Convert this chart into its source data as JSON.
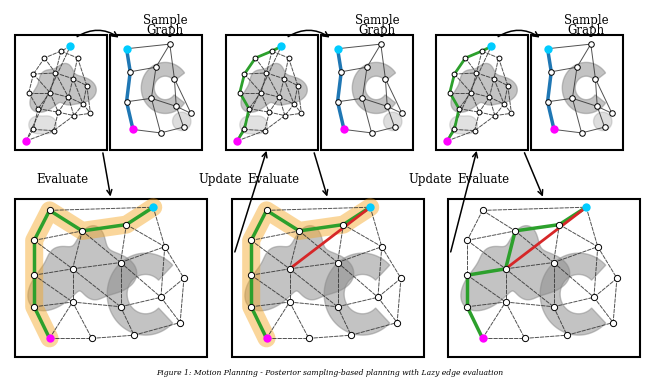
{
  "background": "#ffffff",
  "obstacle_color": "#888888",
  "obstacle_alpha": 0.5,
  "edge_color": "#333333",
  "path_orange": "#f5a623",
  "path_green": "#2ca02c",
  "path_blue": "#1f77b4",
  "path_red": "#d62728",
  "start_color": "#ff00ff",
  "goal_color": "#00ccff",
  "caption": "Figure 1: Motion Planning - Posterior sampling-based planning with Lazy edge evaluation"
}
